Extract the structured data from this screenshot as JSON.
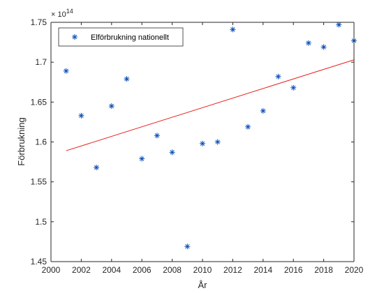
{
  "chart_data": {
    "type": "scatter",
    "title": "",
    "xlabel": "År",
    "ylabel": "Förbrukning",
    "xlim": [
      2000,
      2020
    ],
    "ylim": [
      1.45,
      1.75
    ],
    "y_exponent_label": "× 10",
    "y_exponent_value": "14",
    "xticks": [
      "2000",
      "2002",
      "2004",
      "2006",
      "2008",
      "2010",
      "2012",
      "2014",
      "2016",
      "2018",
      "2020"
    ],
    "yticks": [
      "1.45",
      "1.5",
      "1.55",
      "1.6",
      "1.65",
      "1.7",
      "1.75"
    ],
    "grid": false,
    "legend_position": "top-left",
    "series": [
      {
        "name": "Elförbrukning nationellt",
        "marker": "asterisk",
        "color": "#0a4fb8",
        "x": [
          2001,
          2002,
          2003,
          2004,
          2005,
          2006,
          2007,
          2008,
          2009,
          2010,
          2011,
          2012,
          2013,
          2014,
          2015,
          2016,
          2017,
          2018,
          2019,
          2020
        ],
        "y": [
          1.689,
          1.633,
          1.568,
          1.645,
          1.679,
          1.579,
          1.608,
          1.587,
          1.469,
          1.598,
          1.6,
          1.741,
          1.619,
          1.639,
          1.682,
          1.668,
          1.724,
          1.719,
          1.747,
          1.727
        ]
      }
    ],
    "trend_line": {
      "color": "#e8211c",
      "x": [
        2001,
        2020
      ],
      "y": [
        1.589,
        1.703
      ]
    }
  }
}
